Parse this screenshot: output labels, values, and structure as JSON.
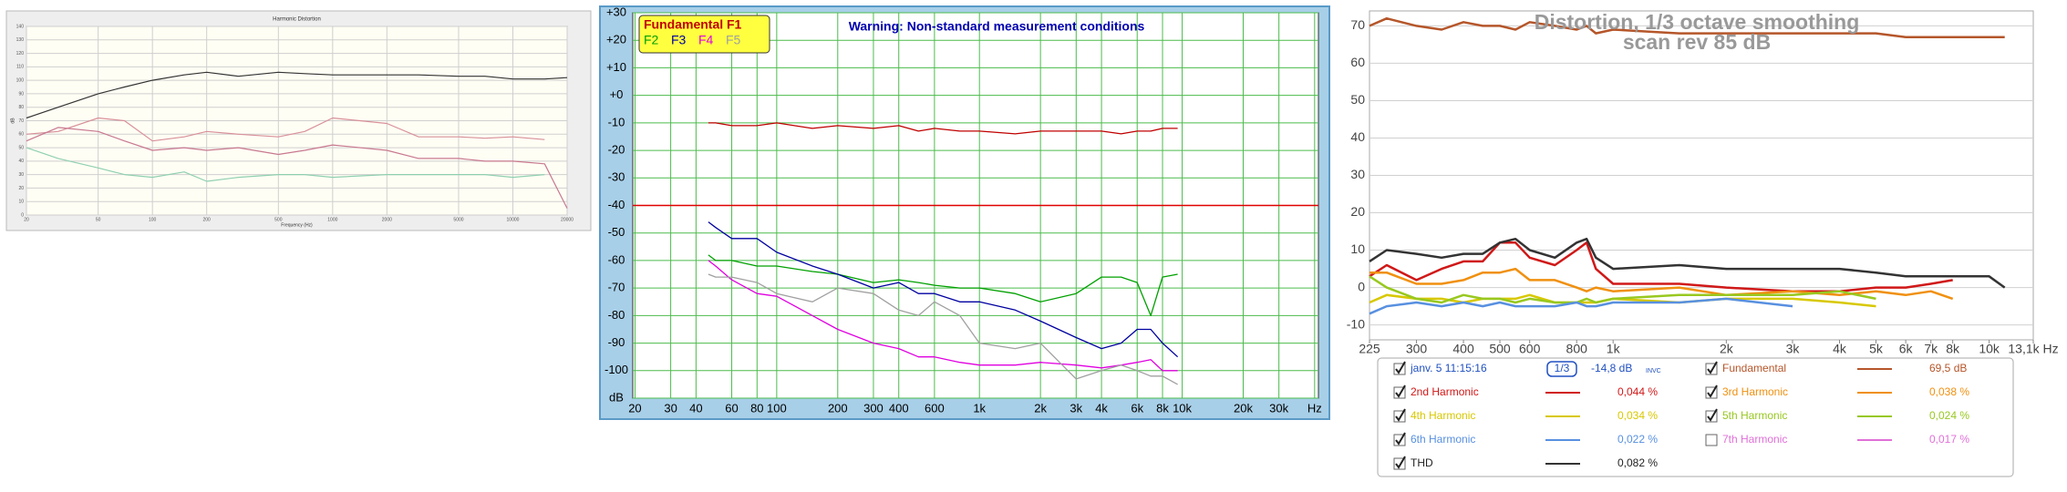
{
  "chart_data": [
    {
      "type": "line",
      "title": "Harmonic Distortion",
      "x_label": "Frequency (Hz)",
      "y_label": "dB",
      "xscale": "log",
      "xlim": [
        20,
        20000
      ],
      "xticks": [
        20,
        50,
        100,
        200,
        500,
        1000,
        2000,
        5000,
        10000,
        20000
      ],
      "ylim": [
        0,
        140
      ],
      "yticks": [
        0,
        10,
        20,
        30,
        40,
        50,
        60,
        70,
        80,
        90,
        100,
        110,
        120,
        130,
        140
      ],
      "grid": true,
      "x": [
        20,
        30,
        50,
        70,
        100,
        150,
        200,
        300,
        500,
        700,
        1000,
        2000,
        3000,
        5000,
        7000,
        10000,
        15000,
        20000
      ],
      "series": [
        {
          "color": "#333333",
          "values": [
            72,
            80,
            90,
            95,
            100,
            104,
            106,
            103,
            106,
            105,
            104,
            104,
            104,
            103,
            103,
            101,
            101,
            102
          ]
        },
        {
          "color": "#d8909a",
          "values": [
            60,
            62,
            72,
            70,
            55,
            58,
            62,
            60,
            58,
            62,
            72,
            68,
            58,
            58,
            57,
            58,
            56,
            null
          ]
        },
        {
          "color": "#c87890",
          "values": [
            55,
            65,
            62,
            55,
            48,
            50,
            48,
            50,
            45,
            48,
            52,
            48,
            42,
            42,
            40,
            40,
            38,
            5
          ]
        },
        {
          "color": "#8fd0b0",
          "values": [
            50,
            42,
            35,
            30,
            28,
            32,
            25,
            28,
            30,
            30,
            28,
            30,
            30,
            30,
            30,
            28,
            30,
            null
          ]
        }
      ]
    },
    {
      "type": "line",
      "warning": "Warning: Non-standard measurement conditions",
      "xscale": "log",
      "xlim": [
        19.5,
        47000
      ],
      "xticks": [
        20,
        30,
        40,
        60,
        80,
        100,
        200,
        300,
        400,
        600,
        {
          "value": 1000,
          "label": "1k"
        },
        {
          "value": 2000,
          "label": "2k"
        },
        {
          "value": 3000,
          "label": "3k"
        },
        {
          "value": 4000,
          "label": "4k"
        },
        {
          "value": 6000,
          "label": "6k"
        },
        {
          "value": 8000,
          "label": "8k"
        },
        {
          "value": 10000,
          "label": "10k"
        },
        {
          "value": 20000,
          "label": "20k"
        },
        {
          "value": 30000,
          "label": "30k"
        },
        {
          "value": 45000,
          "label": "Hz"
        }
      ],
      "ylim": [
        -110,
        30
      ],
      "yticks": [
        {
          "value": 30,
          "label": "+30"
        },
        {
          "value": 20,
          "label": "+20"
        },
        {
          "value": 10,
          "label": "+10"
        },
        {
          "value": 0,
          "label": "+0"
        },
        -10,
        -20,
        -30,
        -40,
        -50,
        -60,
        -70,
        -80,
        -90,
        -100,
        {
          "value": -110,
          "label": "dB"
        }
      ],
      "grid": true,
      "reference_line": {
        "value": -40,
        "color": "#e00000"
      },
      "x": [
        46,
        50,
        60,
        80,
        100,
        150,
        200,
        300,
        400,
        500,
        600,
        800,
        1000,
        1500,
        2000,
        3000,
        4000,
        5000,
        6000,
        7000,
        8000,
        9500
      ],
      "series": [
        {
          "name": "Fundamental F1",
          "color": "#c00000",
          "values": [
            -10,
            -10,
            -11,
            -11,
            -10,
            -12,
            -11,
            -12,
            -11,
            -13,
            -12,
            -13,
            -13,
            -14,
            -13,
            -13,
            -13,
            -14,
            -13,
            -13,
            -12,
            -12
          ]
        },
        {
          "name": "F2",
          "color": "#00a000",
          "values": [
            -58,
            -60,
            -60,
            -62,
            -62,
            -64,
            -65,
            -68,
            -67,
            -68,
            -69,
            -70,
            -70,
            -72,
            -75,
            -72,
            -66,
            -66,
            -68,
            -80,
            -66,
            -65
          ]
        },
        {
          "name": "F3",
          "color": "#0000a0",
          "values": [
            -46,
            -48,
            -52,
            -52,
            -57,
            -62,
            -65,
            -70,
            -68,
            -72,
            -72,
            -75,
            -75,
            -78,
            -82,
            -88,
            -92,
            -90,
            -85,
            -85,
            -90,
            -95
          ]
        },
        {
          "name": "F4",
          "color": "#e000e0",
          "values": [
            -60,
            -62,
            -67,
            -72,
            -73,
            -80,
            -85,
            -90,
            -92,
            -95,
            -95,
            -97,
            -98,
            -98,
            -97,
            -98,
            -99,
            -98,
            -97,
            -96,
            -100,
            -100
          ]
        },
        {
          "name": "F5",
          "color": "#a0a0a0",
          "values": [
            -65,
            -66,
            -66,
            -68,
            -72,
            -75,
            -70,
            -72,
            -78,
            -80,
            -75,
            -80,
            -90,
            -92,
            -90,
            -103,
            -100,
            -98,
            -100,
            -102,
            -102,
            -105
          ]
        }
      ]
    },
    {
      "type": "line",
      "title": "Distortion, 1/3 octave smoothing",
      "subtitle": "scan rev 85 dB",
      "xscale": "log",
      "xlim": [
        225,
        13100
      ],
      "xticks": [
        225,
        300,
        400,
        500,
        600,
        800,
        {
          "value": 1000,
          "label": "1k"
        },
        {
          "value": 2000,
          "label": "2k"
        },
        {
          "value": 3000,
          "label": "3k"
        },
        {
          "value": 4000,
          "label": "4k"
        },
        {
          "value": 5000,
          "label": "5k"
        },
        {
          "value": 6000,
          "label": "6k"
        },
        {
          "value": 7000,
          "label": "7k"
        },
        {
          "value": 8000,
          "label": "8k"
        },
        {
          "value": 10000,
          "label": "10k"
        },
        {
          "value": 13100,
          "label": "13,1k Hz"
        }
      ],
      "ylim": [
        -14,
        74
      ],
      "yticks": [
        -10,
        0,
        10,
        20,
        30,
        40,
        50,
        60,
        70
      ],
      "grid": "y",
      "session": {
        "label": "janv. 5 11:15:16",
        "smoothing": "1/3",
        "offset": "-14,8 dB",
        "mode": "INVC"
      },
      "x": [
        225,
        250,
        300,
        350,
        400,
        450,
        500,
        550,
        600,
        700,
        800,
        850,
        900,
        1000,
        1500,
        2000,
        3000,
        4000,
        5000,
        6000,
        7000,
        8000,
        10000,
        11000
      ],
      "series": [
        {
          "name": "Fundamental",
          "color": "#b5562a",
          "reading": "69,5 dB",
          "checked": true,
          "values": [
            70,
            72,
            70,
            69,
            71,
            70,
            70,
            69,
            71,
            70,
            69,
            70,
            68,
            69,
            68,
            68,
            68,
            68,
            68,
            67,
            67,
            67,
            67,
            67
          ]
        },
        {
          "name": "2nd Harmonic",
          "color": "#d01818",
          "reading": "0,044 %",
          "checked": true,
          "values": [
            3,
            6,
            2,
            5,
            7,
            7,
            12,
            12,
            8,
            6,
            10,
            12,
            5,
            1,
            1,
            0,
            -1,
            -1,
            0,
            0,
            1,
            2,
            null,
            null
          ]
        },
        {
          "name": "3rd Harmonic",
          "color": "#f09010",
          "reading": "0,038 %",
          "checked": true,
          "values": [
            4,
            4,
            1,
            1,
            2,
            4,
            4,
            5,
            2,
            2,
            0,
            -1,
            0,
            -1,
            0,
            -2,
            -1,
            -2,
            -1,
            -2,
            -1,
            -3,
            null,
            null
          ]
        },
        {
          "name": "4th Harmonic",
          "color": "#d8c800",
          "reading": "0,034 %",
          "checked": true,
          "values": [
            -4,
            -2,
            -3,
            -3,
            -4,
            -3,
            -3,
            -3,
            -2,
            -4,
            -4,
            -4,
            -4,
            -3,
            -4,
            -3,
            -3,
            -4,
            -5,
            null,
            null,
            null,
            null,
            null
          ]
        },
        {
          "name": "5th Harmonic",
          "color": "#98c820",
          "reading": "0,024 %",
          "checked": true,
          "values": [
            3,
            0,
            -3,
            -4,
            -2,
            -3,
            -3,
            -4,
            -3,
            -4,
            -4,
            -3,
            -4,
            -3,
            -2,
            -2,
            -2,
            -1,
            -3,
            null,
            null,
            null,
            null,
            null
          ]
        },
        {
          "name": "6th Harmonic",
          "color": "#5890e0",
          "reading": "0,022 %",
          "checked": true,
          "values": [
            -7,
            -5,
            -4,
            -5,
            -4,
            -5,
            -4,
            -5,
            -5,
            -5,
            -4,
            -5,
            -5,
            -4,
            -4,
            -3,
            -5,
            null,
            null,
            null,
            null,
            null,
            null,
            null
          ]
        },
        {
          "name": "7th Harmonic",
          "color": "#e070d8",
          "reading": "0,017 %",
          "checked": false
        },
        {
          "name": "THD",
          "color": "#333333",
          "reading": "0,082 %",
          "checked": true,
          "values": [
            7,
            10,
            9,
            8,
            9,
            9,
            12,
            13,
            10,
            8,
            12,
            13,
            8,
            5,
            6,
            5,
            5,
            5,
            4,
            3,
            3,
            3,
            3,
            0
          ]
        }
      ]
    }
  ]
}
